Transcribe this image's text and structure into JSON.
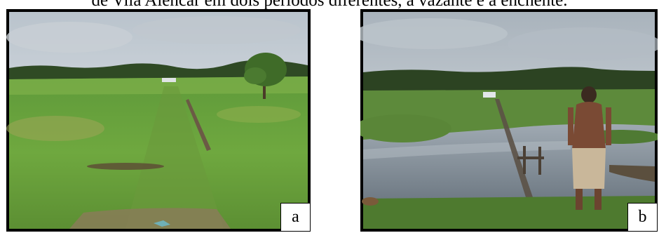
{
  "caption": "de Vila Alencar em dois períodos diferentes, a vazante e a enchente.",
  "panels": [
    {
      "label": "a",
      "scene": "dry-season-grass-field"
    },
    {
      "label": "b",
      "scene": "flooded-field-man-standing"
    }
  ]
}
